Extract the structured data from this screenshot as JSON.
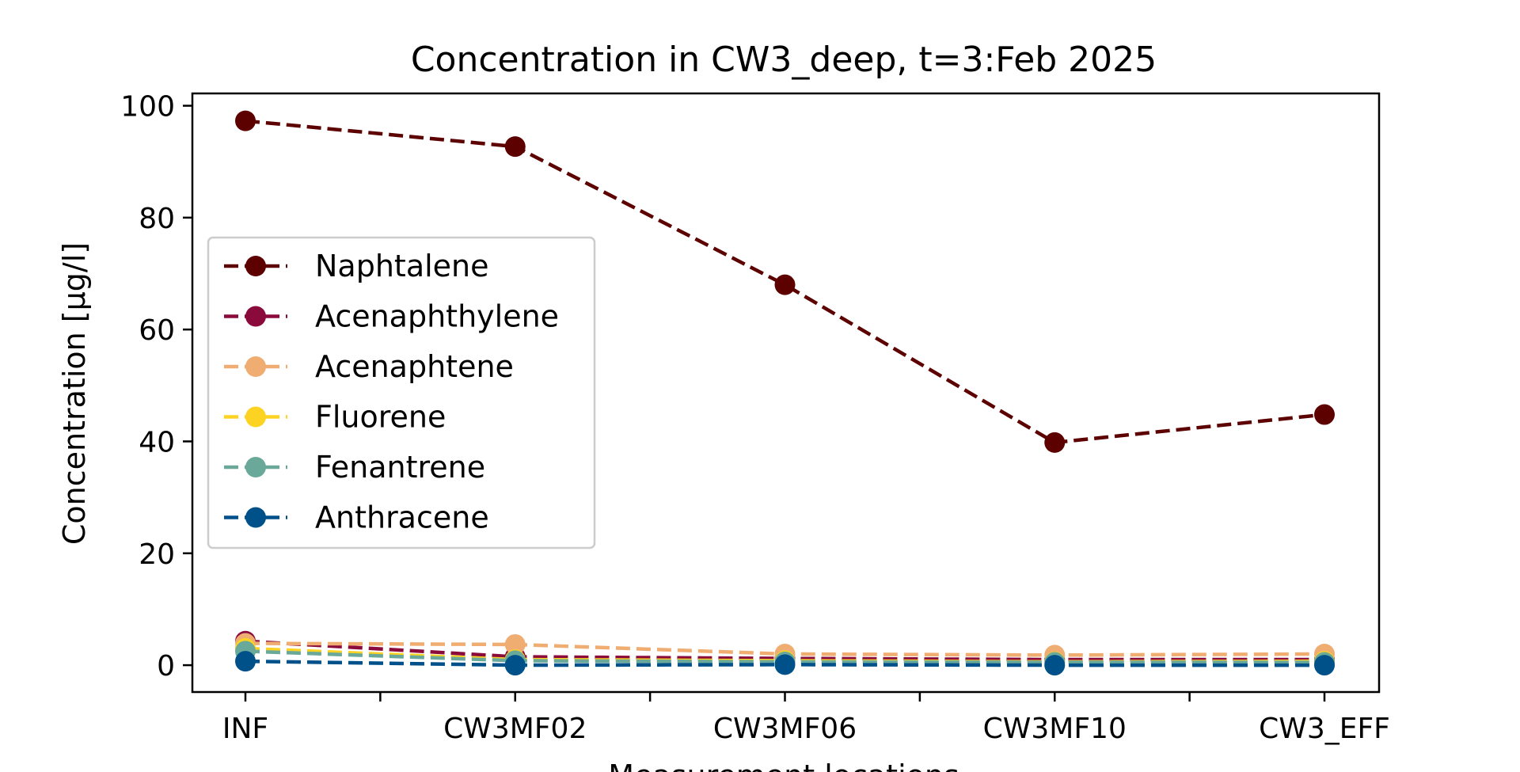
{
  "chart_data": {
    "type": "line",
    "title": "Concentration in CW3_deep, t=3:Feb 2025",
    "xlabel": "Measurement locations",
    "ylabel": "Concentration [µg/l]",
    "categories": [
      "INF",
      "CW3MF02",
      "CW3MF06",
      "CW3MF10",
      "CW3_EFF"
    ],
    "ylim": [
      -4.8,
      102.2
    ],
    "yticks": [
      0,
      20,
      40,
      60,
      80,
      100
    ],
    "grid": false,
    "legend_position": "center-left",
    "line_style": "dashed",
    "marker": "circle",
    "series": [
      {
        "name": "Naphtalene",
        "color": "#5c0000",
        "values": [
          97.3,
          92.7,
          68.0,
          39.8,
          44.8
        ]
      },
      {
        "name": "Acenaphthylene",
        "color": "#8a0a3c",
        "values": [
          4.3,
          1.5,
          1.2,
          1.0,
          1.0
        ]
      },
      {
        "name": "Acenaphtene",
        "color": "#f0ad72",
        "values": [
          3.9,
          3.7,
          2.0,
          1.8,
          2.0
        ]
      },
      {
        "name": "Fluorene",
        "color": "#fdd323",
        "values": [
          3.0,
          1.0,
          0.8,
          0.6,
          0.7
        ]
      },
      {
        "name": "Fenantrene",
        "color": "#6aa99a",
        "values": [
          2.5,
          0.8,
          0.6,
          0.5,
          0.5
        ]
      },
      {
        "name": "Anthracene",
        "color": "#00508a",
        "values": [
          0.7,
          0.0,
          0.1,
          0.0,
          0.0
        ]
      }
    ]
  }
}
